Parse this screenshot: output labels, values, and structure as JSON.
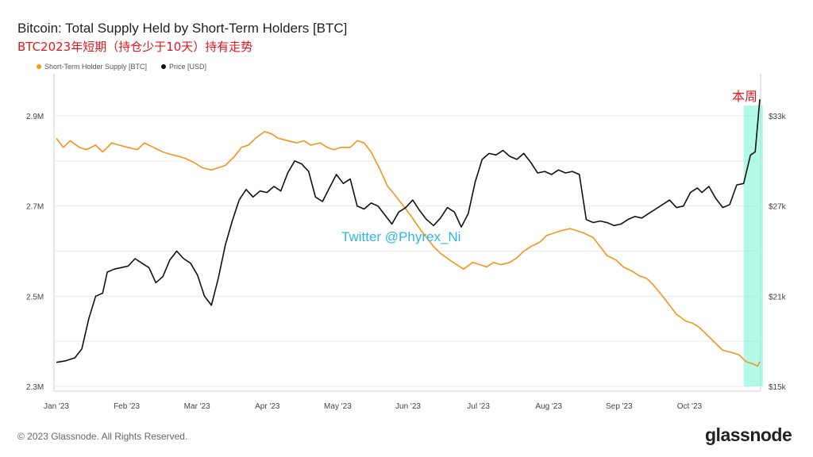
{
  "header": {
    "title": "Bitcoin: Total Supply Held by Short-Term Holders [BTC]",
    "subtitle": "BTC2023年短期（持仓少于10天）持有走势"
  },
  "watermark": "Twitter @Phyrex_Ni",
  "highlight_label": "本周",
  "footer": {
    "copyright": "© 2023 Glassnode. All Rights Reserved.",
    "brand": "glassnode"
  },
  "chart_data": {
    "type": "line",
    "title": "Bitcoin: Total Supply Held by Short-Term Holders [BTC]",
    "x_ticks": [
      "Jan '23",
      "Feb '23",
      "Mar '23",
      "Apr '23",
      "May '23",
      "Jun '23",
      "Jul '23",
      "Aug '23",
      "Sep '23",
      "Oct '23"
    ],
    "y_left": {
      "ticks": [
        "2.3M",
        "2.5M",
        "2.7M",
        "2.9M"
      ],
      "range": [
        2.3,
        2.9
      ]
    },
    "y_right": {
      "ticks": [
        "$15k",
        "$21k",
        "$27k",
        "$33k"
      ],
      "range": [
        15,
        33
      ]
    },
    "grid": true,
    "legend_placement": "top-left",
    "highlight_region": {
      "from_day": 297,
      "to_day": 304
    },
    "series": [
      {
        "name": "Short-Term Holder Supply [BTC]",
        "axis": "left",
        "color": "#f7931a",
        "unit": "M BTC",
        "points": [
          [
            0,
            2.85
          ],
          [
            3,
            2.83
          ],
          [
            6,
            2.845
          ],
          [
            10,
            2.83
          ],
          [
            13,
            2.825
          ],
          [
            17,
            2.835
          ],
          [
            20,
            2.82
          ],
          [
            24,
            2.84
          ],
          [
            27,
            2.835
          ],
          [
            31,
            2.83
          ],
          [
            35,
            2.825
          ],
          [
            38,
            2.84
          ],
          [
            42,
            2.83
          ],
          [
            46,
            2.82
          ],
          [
            49,
            2.815
          ],
          [
            53,
            2.81
          ],
          [
            56,
            2.805
          ],
          [
            60,
            2.795
          ],
          [
            63,
            2.785
          ],
          [
            67,
            2.78
          ],
          [
            70,
            2.785
          ],
          [
            73,
            2.79
          ],
          [
            77,
            2.81
          ],
          [
            80,
            2.83
          ],
          [
            83,
            2.835
          ],
          [
            86,
            2.85
          ],
          [
            90,
            2.865
          ],
          [
            93,
            2.86
          ],
          [
            96,
            2.85
          ],
          [
            100,
            2.845
          ],
          [
            104,
            2.84
          ],
          [
            107,
            2.845
          ],
          [
            110,
            2.835
          ],
          [
            114,
            2.84
          ],
          [
            117,
            2.83
          ],
          [
            120,
            2.825
          ],
          [
            123,
            2.83
          ],
          [
            127,
            2.83
          ],
          [
            130,
            2.845
          ],
          [
            133,
            2.84
          ],
          [
            136,
            2.82
          ],
          [
            140,
            2.78
          ],
          [
            143,
            2.745
          ],
          [
            147,
            2.72
          ],
          [
            150,
            2.7
          ],
          [
            153,
            2.68
          ],
          [
            157,
            2.65
          ],
          [
            160,
            2.63
          ],
          [
            163,
            2.61
          ],
          [
            166,
            2.595
          ],
          [
            170,
            2.58
          ],
          [
            173,
            2.57
          ],
          [
            176,
            2.56
          ],
          [
            180,
            2.575
          ],
          [
            183,
            2.57
          ],
          [
            186,
            2.565
          ],
          [
            189,
            2.575
          ],
          [
            192,
            2.57
          ],
          [
            196,
            2.575
          ],
          [
            199,
            2.585
          ],
          [
            202,
            2.6
          ],
          [
            205,
            2.61
          ],
          [
            209,
            2.62
          ],
          [
            212,
            2.635
          ],
          [
            215,
            2.64
          ],
          [
            218,
            2.645
          ],
          [
            222,
            2.65
          ],
          [
            225,
            2.645
          ],
          [
            228,
            2.64
          ],
          [
            232,
            2.63
          ],
          [
            235,
            2.61
          ],
          [
            238,
            2.59
          ],
          [
            242,
            2.58
          ],
          [
            245,
            2.565
          ],
          [
            249,
            2.555
          ],
          [
            252,
            2.545
          ],
          [
            255,
            2.54
          ],
          [
            258,
            2.525
          ],
          [
            262,
            2.5
          ],
          [
            265,
            2.48
          ],
          [
            268,
            2.46
          ],
          [
            272,
            2.445
          ],
          [
            275,
            2.44
          ],
          [
            278,
            2.43
          ],
          [
            282,
            2.41
          ],
          [
            285,
            2.395
          ],
          [
            288,
            2.38
          ],
          [
            292,
            2.375
          ],
          [
            295,
            2.37
          ],
          [
            298,
            2.355
          ],
          [
            301,
            2.35
          ],
          [
            303,
            2.345
          ],
          [
            304,
            2.355
          ]
        ]
      },
      {
        "name": "Price [USD]",
        "axis": "right",
        "color": "#111111",
        "unit": "k USD",
        "points": [
          [
            0,
            16.6
          ],
          [
            4,
            16.7
          ],
          [
            8,
            16.9
          ],
          [
            11,
            17.5
          ],
          [
            14,
            19.5
          ],
          [
            17,
            21.0
          ],
          [
            20,
            21.2
          ],
          [
            22,
            22.6
          ],
          [
            25,
            22.8
          ],
          [
            28,
            22.9
          ],
          [
            31,
            23.0
          ],
          [
            34,
            23.5
          ],
          [
            37,
            23.2
          ],
          [
            40,
            22.9
          ],
          [
            43,
            21.9
          ],
          [
            46,
            22.3
          ],
          [
            49,
            23.4
          ],
          [
            52,
            24.0
          ],
          [
            55,
            23.5
          ],
          [
            58,
            23.2
          ],
          [
            61,
            22.4
          ],
          [
            64,
            21.0
          ],
          [
            67,
            20.4
          ],
          [
            70,
            22.2
          ],
          [
            73,
            24.4
          ],
          [
            76,
            26.0
          ],
          [
            79,
            27.4
          ],
          [
            82,
            28.1
          ],
          [
            85,
            27.6
          ],
          [
            88,
            28.0
          ],
          [
            91,
            27.9
          ],
          [
            94,
            28.3
          ],
          [
            97,
            28.0
          ],
          [
            100,
            29.2
          ],
          [
            103,
            30.0
          ],
          [
            106,
            29.8
          ],
          [
            109,
            29.3
          ],
          [
            112,
            27.6
          ],
          [
            115,
            27.3
          ],
          [
            118,
            28.2
          ],
          [
            121,
            29.1
          ],
          [
            124,
            28.5
          ],
          [
            127,
            28.8
          ],
          [
            130,
            27.0
          ],
          [
            133,
            26.8
          ],
          [
            136,
            27.2
          ],
          [
            139,
            27.0
          ],
          [
            142,
            26.4
          ],
          [
            145,
            25.8
          ],
          [
            148,
            26.6
          ],
          [
            151,
            26.9
          ],
          [
            154,
            27.4
          ],
          [
            157,
            26.7
          ],
          [
            160,
            26.1
          ],
          [
            163,
            25.7
          ],
          [
            166,
            26.2
          ],
          [
            169,
            26.9
          ],
          [
            172,
            26.6
          ],
          [
            175,
            25.6
          ],
          [
            178,
            26.5
          ],
          [
            181,
            28.6
          ],
          [
            184,
            30.1
          ],
          [
            187,
            30.5
          ],
          [
            190,
            30.4
          ],
          [
            193,
            30.7
          ],
          [
            196,
            30.3
          ],
          [
            199,
            30.1
          ],
          [
            202,
            30.5
          ],
          [
            205,
            29.9
          ],
          [
            208,
            29.2
          ],
          [
            211,
            29.3
          ],
          [
            214,
            29.1
          ],
          [
            217,
            29.4
          ],
          [
            220,
            29.2
          ],
          [
            223,
            29.3
          ],
          [
            226,
            29.1
          ],
          [
            229,
            26.1
          ],
          [
            232,
            25.9
          ],
          [
            235,
            26.0
          ],
          [
            238,
            25.9
          ],
          [
            241,
            25.7
          ],
          [
            244,
            25.8
          ],
          [
            247,
            26.1
          ],
          [
            250,
            26.3
          ],
          [
            253,
            26.2
          ],
          [
            256,
            26.5
          ],
          [
            259,
            26.8
          ],
          [
            262,
            27.1
          ],
          [
            265,
            27.4
          ],
          [
            268,
            26.9
          ],
          [
            271,
            27.0
          ],
          [
            274,
            27.9
          ],
          [
            277,
            28.2
          ],
          [
            279,
            27.9
          ],
          [
            282,
            28.3
          ],
          [
            285,
            27.5
          ],
          [
            288,
            26.9
          ],
          [
            291,
            27.1
          ],
          [
            294,
            28.4
          ],
          [
            297,
            28.5
          ],
          [
            300,
            30.4
          ],
          [
            302,
            30.6
          ],
          [
            304,
            34.1
          ]
        ]
      }
    ]
  }
}
